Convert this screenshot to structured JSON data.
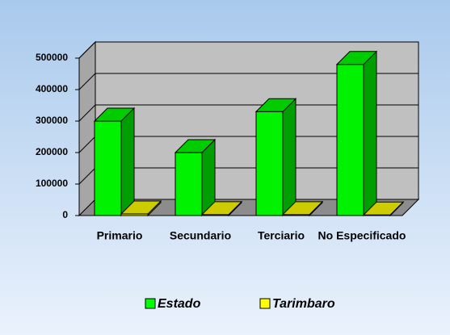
{
  "chart_data": {
    "type": "bar3d",
    "categories": [
      "Primario",
      "Secundario",
      "Terciario",
      "No Especificado"
    ],
    "series": [
      {
        "name": "Estado",
        "color": "#00ff00",
        "values": [
          300000,
          200000,
          330000,
          480000
        ]
      },
      {
        "name": "Tarimbaro",
        "color": "#ffff00",
        "values": [
          5000,
          3000,
          3000,
          2000
        ]
      }
    ],
    "ylim": [
      0,
      500000
    ],
    "yticks": [
      0,
      100000,
      200000,
      300000,
      400000,
      500000
    ],
    "grid": true,
    "legend": "bottom"
  }
}
